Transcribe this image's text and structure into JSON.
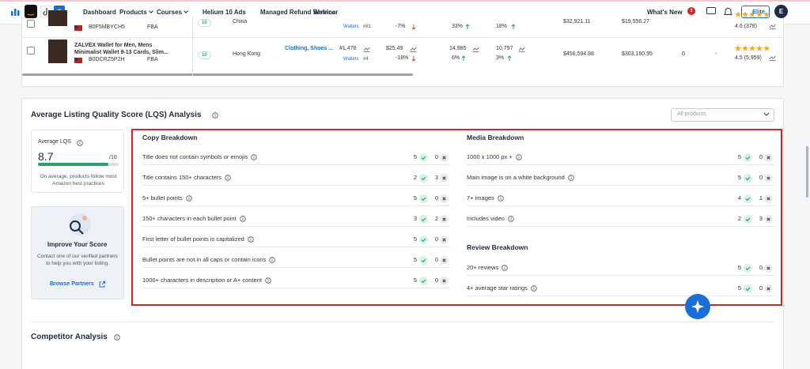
{
  "nav": {
    "items": [
      "Dashboard",
      "Products",
      "Courses",
      "Helium 10 Ads",
      "Managed Refund Service",
      "Webinar"
    ],
    "whats_new": "What's New",
    "badge": "1",
    "plan": "Elite",
    "avatar": "E"
  },
  "products_table": {
    "rows": [
      {
        "asin": "B0F5MBYCH5",
        "fulfillment": "FBA",
        "score": "10",
        "country": "China",
        "subcategory": "Wallets",
        "subrank": "#81",
        "price_change": "-7%",
        "metric_a": "33%",
        "metric_b": "18%",
        "revenue": "$32,921.11",
        "net": "$19,556.27",
        "rating": "4.6 (378)"
      },
      {
        "title": "ZALVEX Wallet for Men, Mens Minimalist Wallet 9-13 Cards, Slim...",
        "asin": "B0DCRZ5P2H",
        "fulfillment": "FBA",
        "score": "10",
        "country": "Hong Kong",
        "category": "Clothing, Shoes ...",
        "rank": "#1,476",
        "subcategory": "Wallets",
        "subrank": "#4",
        "price": "$25.49",
        "price_change": "-18%",
        "sales": "14,985",
        "sales_change": "6%",
        "units": "10,797",
        "units_change": "3%",
        "revenue": "$456,594.88",
        "net": "$303,160.95",
        "count": "0",
        "dash": "-",
        "rating": "4.5 (5,959)"
      }
    ]
  },
  "lqs": {
    "title": "Average Listing Quality Score (LQS) Analysis",
    "filter": "All products",
    "average": {
      "label": "Average LQS",
      "score": "8.7",
      "max": "/10",
      "note": "On average, products follow most Amazon best practices"
    },
    "improve": {
      "title": "Improve Your Score",
      "text": "Contact one of our verified partners to help you with your listing.",
      "link": "Browse Partners"
    },
    "copy": {
      "title": "Copy Breakdown",
      "items": [
        {
          "label": "Title does not contain symbols or emojis",
          "pass": "5",
          "fail": "0"
        },
        {
          "label": "Title contains 150+ characters",
          "pass": "2",
          "fail": "3"
        },
        {
          "label": "5+ bullet points",
          "pass": "5",
          "fail": "0"
        },
        {
          "label": "150+ characters in each bullet point",
          "pass": "3",
          "fail": "2"
        },
        {
          "label": "First letter of bullet points is capitalized",
          "pass": "5",
          "fail": "0"
        },
        {
          "label": "Bullet points are not in all caps or contain icons",
          "pass": "5",
          "fail": "0"
        },
        {
          "label": "1000+ characters in description or A+ content",
          "pass": "5",
          "fail": "0"
        }
      ]
    },
    "media": {
      "title": "Media Breakdown",
      "items": [
        {
          "label": "1000 x 1000 px +",
          "pass": "5",
          "fail": "0"
        },
        {
          "label": "Main image is on a white background",
          "pass": "5",
          "fail": "0"
        },
        {
          "label": "7+ images",
          "pass": "4",
          "fail": "1"
        },
        {
          "label": "Includes video",
          "pass": "2",
          "fail": "3"
        }
      ]
    },
    "review": {
      "title": "Review Breakdown",
      "items": [
        {
          "label": "20+ reviews",
          "pass": "5",
          "fail": "0"
        },
        {
          "label": "4+ average star ratings",
          "pass": "5",
          "fail": "0"
        }
      ]
    }
  },
  "competitor": {
    "title": "Competitor Analysis"
  }
}
